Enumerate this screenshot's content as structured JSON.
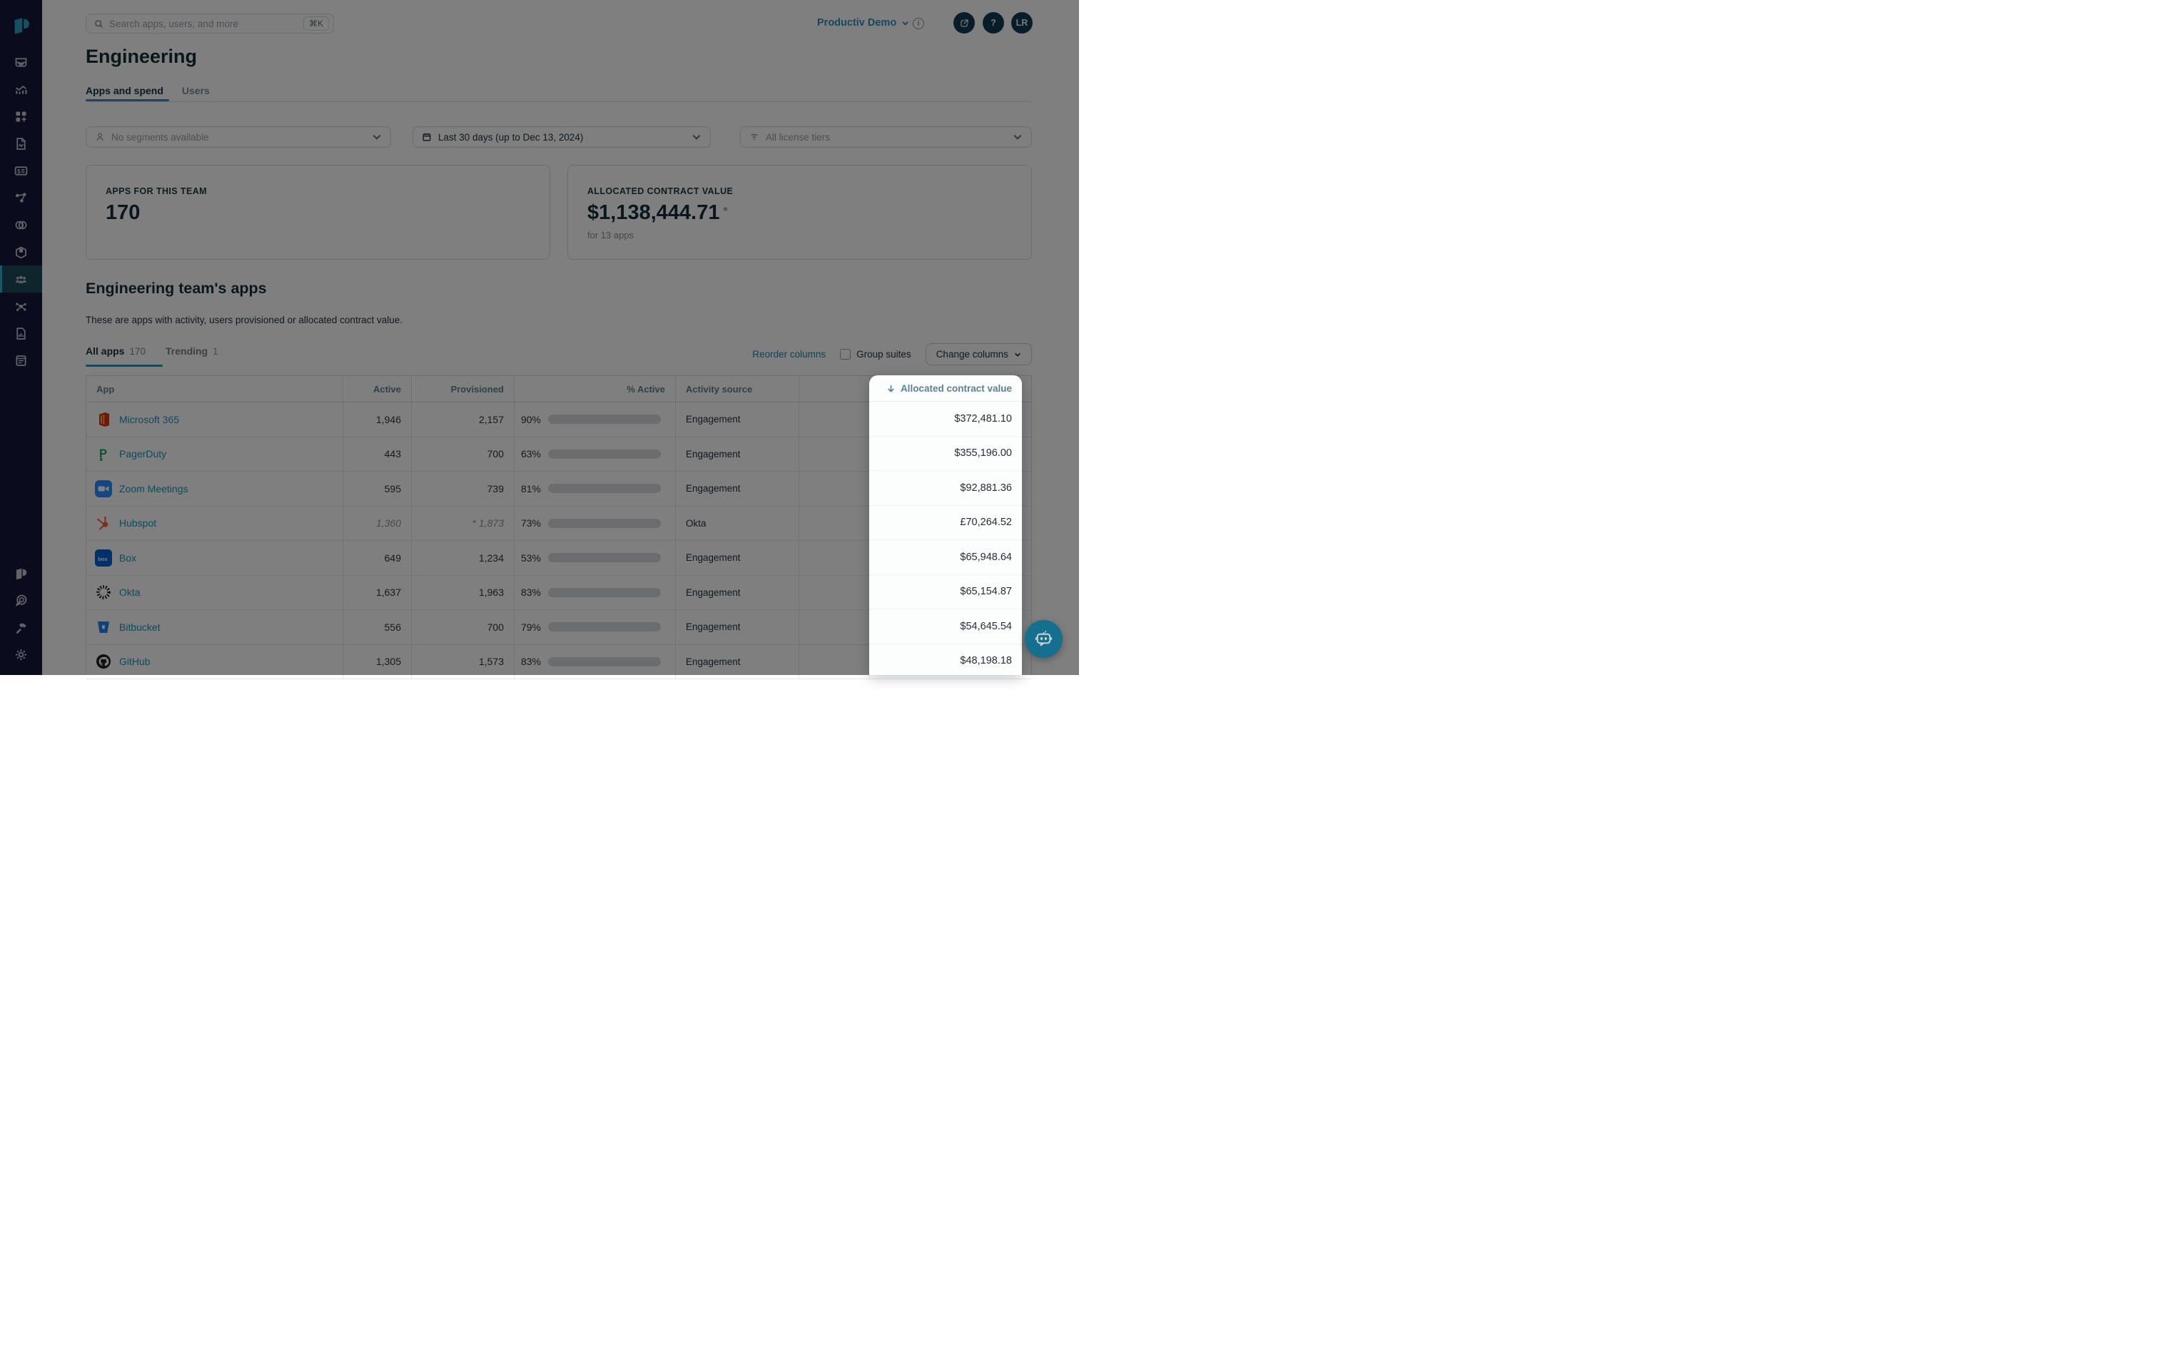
{
  "brand": {
    "accent": "#2596bc",
    "sidebar_bg": "#14183a",
    "spotlight_bg": "#fcfdfd",
    "bar_teal": "#2196ba",
    "bar_purple": "#7579d8"
  },
  "sidebar": {
    "logo_icon": "productiv-logo",
    "top_items": [
      {
        "icon": "inbox"
      },
      {
        "icon": "analytics"
      },
      {
        "icon": "apps-add"
      },
      {
        "icon": "invoice"
      },
      {
        "icon": "spend-card"
      },
      {
        "icon": "workflow"
      },
      {
        "icon": "suites"
      },
      {
        "icon": "package"
      },
      {
        "icon": "teams",
        "active": true
      },
      {
        "icon": "integrations"
      },
      {
        "icon": "report"
      },
      {
        "icon": "notes"
      }
    ],
    "bottom_items": [
      {
        "icon": "productiv-mark"
      },
      {
        "icon": "target"
      },
      {
        "icon": "hammer"
      },
      {
        "icon": "settings-gear"
      }
    ]
  },
  "topbar": {
    "search_placeholder": "Search apps, users, and more",
    "search_shortcut": "⌘K",
    "org_name": "Productiv Demo",
    "help_label": "?",
    "avatar_initials": "LR"
  },
  "page": {
    "title": "Engineering",
    "tabs": [
      {
        "label": "Apps and spend",
        "active": true
      },
      {
        "label": "Users",
        "active": false
      }
    ]
  },
  "filters": {
    "segments": "No segments available",
    "date_range": "Last 30 days (up to Dec 13, 2024)",
    "license_tiers": "All license tiers"
  },
  "summary_cards": [
    {
      "label": "APPS FOR THIS TEAM",
      "value": "170"
    },
    {
      "label": "ALLOCATED CONTRACT VALUE",
      "value": "$1,138,444.71",
      "value_suffix": "*",
      "subtext": "for 13 apps"
    }
  ],
  "apps_section": {
    "heading": "Engineering team's apps",
    "description": "These are apps with activity, users provisioned or allocated contract value.",
    "tabs": [
      {
        "label": "All apps",
        "count": "170",
        "active": true
      },
      {
        "label": "Trending",
        "count": "1",
        "active": false
      }
    ],
    "controls": {
      "reorder_link": "Reorder columns",
      "group_suites_label": "Group suites",
      "group_suites_checked": false,
      "change_columns_label": "Change columns"
    }
  },
  "table": {
    "columns": [
      {
        "label": "App",
        "align": "left"
      },
      {
        "label": "Active",
        "align": "right"
      },
      {
        "label": "Provisioned",
        "align": "right"
      },
      {
        "label": "% Active",
        "align": "right"
      },
      {
        "label": "Activity source",
        "align": "left"
      },
      {
        "label": "Allocated contract value",
        "align": "right",
        "sorted": "desc",
        "highlighted": true
      }
    ],
    "rows": [
      {
        "app": "Microsoft 365",
        "icon": "microsoft-365",
        "active": "1,946",
        "provisioned": "2,157",
        "pct_label": "90%",
        "pct": 90,
        "bar_color": "teal",
        "source": "Engagement",
        "value": "$372,481.10",
        "estimated": false
      },
      {
        "app": "PagerDuty",
        "icon": "pagerduty",
        "active": "443",
        "provisioned": "700",
        "pct_label": "63%",
        "pct": 63,
        "bar_color": "teal",
        "source": "Engagement",
        "value": "$355,196.00",
        "estimated": false
      },
      {
        "app": "Zoom Meetings",
        "icon": "zoom",
        "active": "595",
        "provisioned": "739",
        "pct_label": "81%",
        "pct": 81,
        "bar_color": "teal",
        "source": "Engagement",
        "value": "$92,881.36",
        "estimated": false
      },
      {
        "app": "Hubspot",
        "icon": "hubspot",
        "active": "1,360",
        "provisioned": "* 1,873",
        "pct_label": "73%",
        "pct": 73,
        "bar_color": "purple",
        "source": "Okta",
        "value": "£70,264.52",
        "estimated": true
      },
      {
        "app": "Box",
        "icon": "box",
        "active": "649",
        "provisioned": "1,234",
        "pct_label": "53%",
        "pct": 53,
        "bar_color": "teal",
        "source": "Engagement",
        "value": "$65,948.64",
        "estimated": false
      },
      {
        "app": "Okta",
        "icon": "okta",
        "active": "1,637",
        "provisioned": "1,963",
        "pct_label": "83%",
        "pct": 83,
        "bar_color": "teal",
        "source": "Engagement",
        "value": "$65,154.87",
        "estimated": false
      },
      {
        "app": "Bitbucket",
        "icon": "bitbucket",
        "active": "556",
        "provisioned": "700",
        "pct_label": "79%",
        "pct": 79,
        "bar_color": "teal",
        "source": "Engagement",
        "value": "$54,645.54",
        "estimated": false
      },
      {
        "app": "GitHub",
        "icon": "github",
        "active": "1,305",
        "provisioned": "1,573",
        "pct_label": "83%",
        "pct": 83,
        "bar_color": "teal",
        "source": "Engagement",
        "value": "$48,198.18",
        "estimated": false
      }
    ]
  },
  "chatbot": {
    "icon": "chat-bot"
  }
}
